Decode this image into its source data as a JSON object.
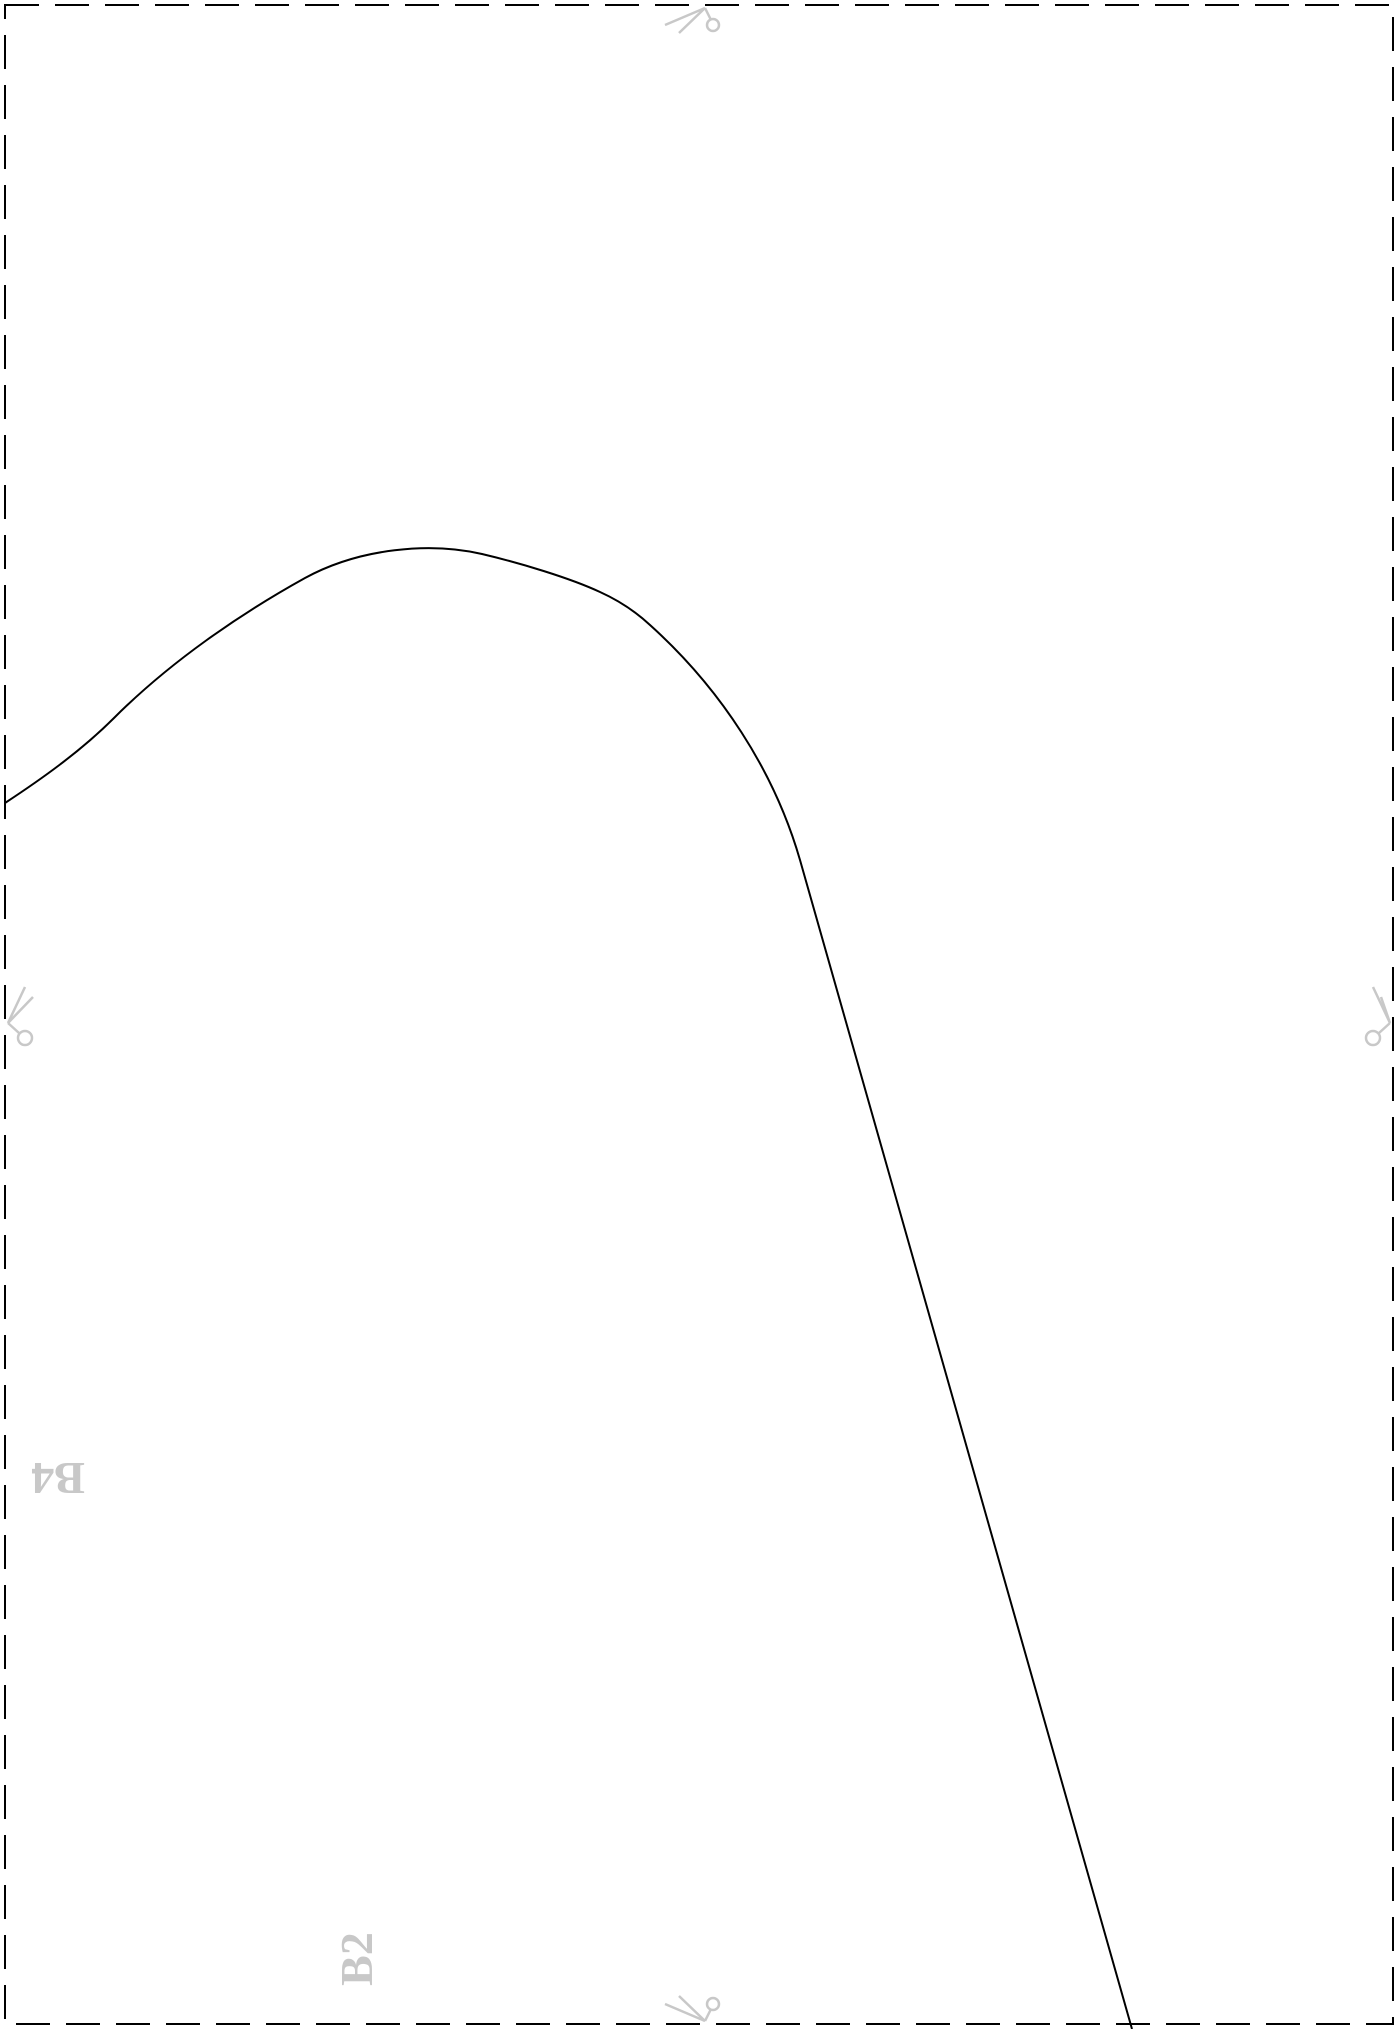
{
  "page_labels": {
    "left_neighbor": "B4",
    "bottom_neighbor": "B2"
  },
  "icons": {
    "cut_marks": [
      "scissors-icon",
      "scissors-icon",
      "scissors-icon",
      "scissors-icon"
    ]
  },
  "colors": {
    "cut_line": "#000000",
    "pattern_line": "#000000",
    "label": "#c8c8c8",
    "scissors": "#c8c8c8",
    "background": "#ffffff"
  }
}
